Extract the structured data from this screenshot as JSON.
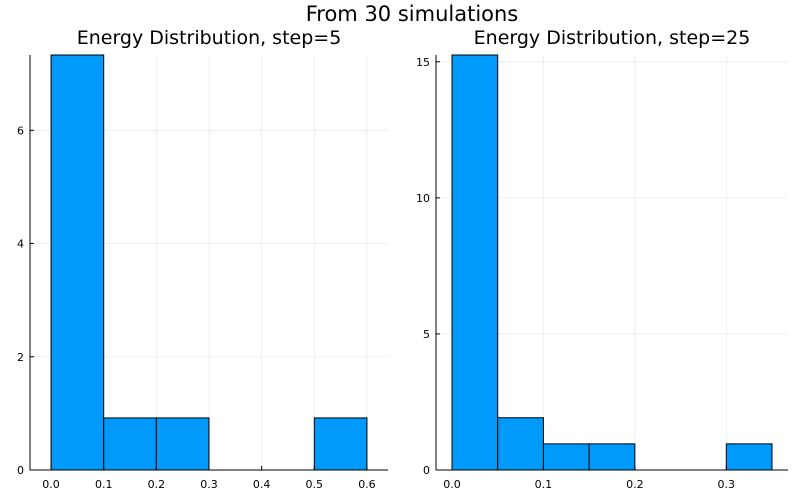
{
  "figure": {
    "title": "From 30 simulations",
    "bar_color": "#009AFA",
    "edge_color": "#000000"
  },
  "chart_data": [
    {
      "type": "bar",
      "title": "Energy Distribution, step=5",
      "xlabel": "",
      "ylabel": "",
      "bin_edges": [
        0.0,
        0.1,
        0.2,
        0.3,
        0.4,
        0.5,
        0.6
      ],
      "values": [
        7.33,
        0.92,
        0.92,
        0.0,
        0.0,
        0.92
      ],
      "xlim": [
        -0.04,
        0.64
      ],
      "ylim": [
        0,
        7.33
      ],
      "xticks": [
        0.0,
        0.1,
        0.2,
        0.3,
        0.4,
        0.5,
        0.6
      ],
      "xtick_labels": [
        "0.0",
        "0.1",
        "0.2",
        "0.3",
        "0.4",
        "0.5",
        "0.6"
      ],
      "yticks": [
        0,
        2,
        4,
        6
      ],
      "ytick_labels": [
        "0",
        "2",
        "4",
        "6"
      ],
      "grid": true,
      "legend": "none"
    },
    {
      "type": "bar",
      "title": "Energy Distribution, step=25",
      "xlabel": "",
      "ylabel": "",
      "bin_edges": [
        0.0,
        0.05,
        0.1,
        0.15,
        0.2,
        0.25,
        0.3,
        0.35
      ],
      "values": [
        15.25,
        1.92,
        0.96,
        0.96,
        0.0,
        0.0,
        0.96
      ],
      "xlim": [
        -0.0175,
        0.3675
      ],
      "ylim": [
        0,
        15.25
      ],
      "xticks": [
        0.0,
        0.1,
        0.2,
        0.3
      ],
      "xtick_labels": [
        "0.0",
        "0.1",
        "0.2",
        "0.3"
      ],
      "yticks": [
        0,
        5,
        10,
        15
      ],
      "ytick_labels": [
        "0",
        "5",
        "10",
        "15"
      ],
      "grid": true,
      "legend": "none"
    }
  ]
}
